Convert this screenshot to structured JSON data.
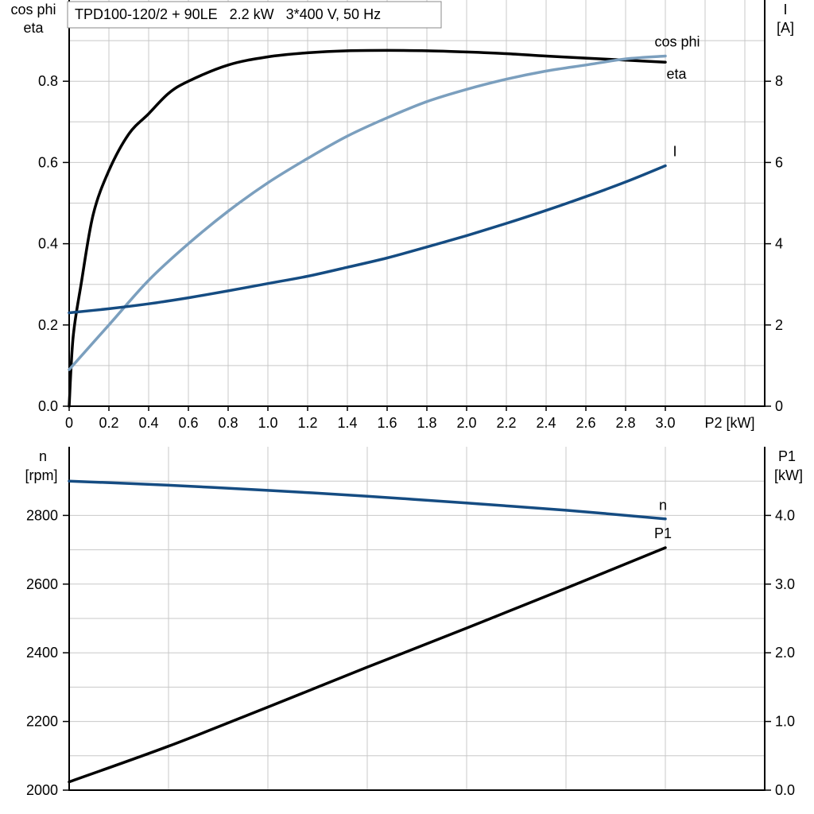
{
  "chart_data": [
    {
      "type": "line",
      "title": "TPD100-120/2 + 90LE   2.2 kW   3*400 V, 50 Hz",
      "xlabel": "P2 [kW]",
      "xlim": [
        0,
        3.5
      ],
      "xticks": [
        "0",
        "0.2",
        "0.4",
        "0.6",
        "0.8",
        "1.0",
        "1.2",
        "1.4",
        "1.6",
        "1.8",
        "2.0",
        "2.2",
        "2.4",
        "2.6",
        "2.8",
        "3.0"
      ],
      "ylabel_left": [
        "cos phi",
        "eta"
      ],
      "ylim_left": [
        0,
        1.0
      ],
      "yticks_left": [
        "0.0",
        "0.2",
        "0.4",
        "0.6",
        "0.8"
      ],
      "ylabel_right": [
        "I",
        "[A]"
      ],
      "ylim_right": [
        0,
        10
      ],
      "yticks_right": [
        "0",
        "2",
        "4",
        "6",
        "8"
      ],
      "grid": true,
      "series": [
        {
          "name": "eta",
          "axis": "left",
          "color": "#000000",
          "points": [
            [
              0,
              0
            ],
            [
              0.02,
              0.17
            ],
            [
              0.06,
              0.3
            ],
            [
              0.12,
              0.47
            ],
            [
              0.2,
              0.58
            ],
            [
              0.3,
              0.67
            ],
            [
              0.4,
              0.72
            ],
            [
              0.5,
              0.77
            ],
            [
              0.6,
              0.8
            ],
            [
              0.8,
              0.84
            ],
            [
              1.0,
              0.86
            ],
            [
              1.2,
              0.87
            ],
            [
              1.4,
              0.875
            ],
            [
              1.6,
              0.876
            ],
            [
              1.8,
              0.875
            ],
            [
              2.0,
              0.872
            ],
            [
              2.2,
              0.868
            ],
            [
              2.4,
              0.862
            ],
            [
              2.6,
              0.857
            ],
            [
              2.8,
              0.852
            ],
            [
              3.0,
              0.847
            ]
          ]
        },
        {
          "name": "cos phi",
          "axis": "left",
          "color": "#7b9fbe",
          "points": [
            [
              0,
              0.09
            ],
            [
              0.2,
              0.2
            ],
            [
              0.4,
              0.31
            ],
            [
              0.6,
              0.4
            ],
            [
              0.8,
              0.48
            ],
            [
              1.0,
              0.55
            ],
            [
              1.2,
              0.61
            ],
            [
              1.4,
              0.665
            ],
            [
              1.6,
              0.71
            ],
            [
              1.8,
              0.75
            ],
            [
              2.0,
              0.78
            ],
            [
              2.2,
              0.805
            ],
            [
              2.4,
              0.825
            ],
            [
              2.6,
              0.84
            ],
            [
              2.8,
              0.855
            ],
            [
              3.0,
              0.862
            ]
          ]
        },
        {
          "name": "I",
          "axis": "right",
          "color": "#154c82",
          "points": [
            [
              0,
              2.3
            ],
            [
              0.2,
              2.4
            ],
            [
              0.4,
              2.52
            ],
            [
              0.6,
              2.67
            ],
            [
              0.8,
              2.84
            ],
            [
              1.0,
              3.02
            ],
            [
              1.2,
              3.2
            ],
            [
              1.4,
              3.42
            ],
            [
              1.6,
              3.65
            ],
            [
              1.8,
              3.92
            ],
            [
              2.0,
              4.2
            ],
            [
              2.2,
              4.5
            ],
            [
              2.4,
              4.82
            ],
            [
              2.6,
              5.16
            ],
            [
              2.8,
              5.52
            ],
            [
              3.0,
              5.92
            ]
          ]
        }
      ]
    },
    {
      "type": "line",
      "xlim": [
        0,
        3.5
      ],
      "ylabel_left": [
        "n",
        "[rpm]"
      ],
      "ylim_left": [
        2000,
        3000
      ],
      "yticks_left": [
        "2000",
        "2200",
        "2400",
        "2600",
        "2800"
      ],
      "ylabel_right": [
        "P1",
        "[kW]"
      ],
      "ylim_right": [
        0,
        5.0
      ],
      "yticks_right": [
        "0.0",
        "1.0",
        "2.0",
        "3.0",
        "4.0"
      ],
      "grid": true,
      "series": [
        {
          "name": "n",
          "axis": "left",
          "color": "#154c82",
          "points": [
            [
              0,
              2900
            ],
            [
              0.5,
              2888
            ],
            [
              1.0,
              2873
            ],
            [
              1.5,
              2856
            ],
            [
              2.0,
              2836
            ],
            [
              2.5,
              2815
            ],
            [
              3.0,
              2790
            ]
          ]
        },
        {
          "name": "P1",
          "axis": "right",
          "color": "#000000",
          "points": [
            [
              0,
              0.12
            ],
            [
              0.5,
              0.64
            ],
            [
              1.0,
              1.21
            ],
            [
              1.5,
              1.79
            ],
            [
              2.0,
              2.36
            ],
            [
              2.5,
              2.94
            ],
            [
              3.0,
              3.53
            ]
          ]
        }
      ]
    }
  ]
}
